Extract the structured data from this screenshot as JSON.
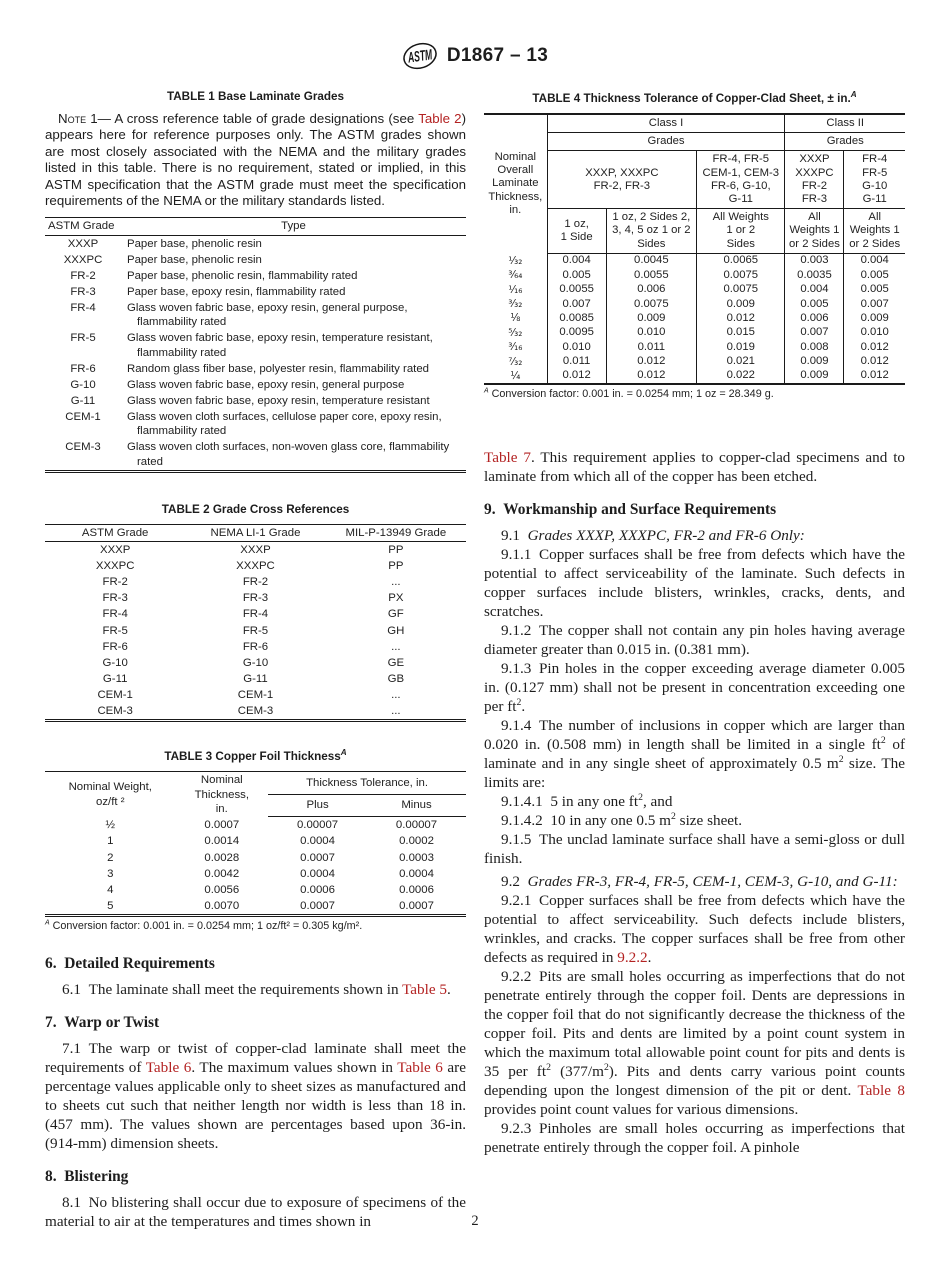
{
  "theme": {
    "link_color": "#b32222",
    "text_color": "#1d1d1d"
  },
  "header": {
    "doc_code": "D1867 – 13",
    "logo": "ASTM"
  },
  "footer": {
    "page_number": "2"
  },
  "table1": {
    "title": "TABLE 1 Base Laminate Grades",
    "note": [
      {
        "t": "Note",
        "s": "sc"
      },
      {
        "t": " 1— A cross reference table of grade designations (see "
      },
      {
        "t": "Table 2",
        "s": "link"
      },
      {
        "t": ") appears here for reference purposes only. The ASTM grades shown are most closely associated with the NEMA and the military grades listed in this table. There is no requirement, stated or implied, in this ASTM specification that the ASTM grade must meet the specification requirements of the NEMA or the military standards listed."
      }
    ],
    "columns": [
      "ASTM Grade",
      "Type"
    ],
    "rows": [
      [
        "XXXP",
        "Paper base, phenolic resin"
      ],
      [
        "XXXPC",
        "Paper base, phenolic resin"
      ],
      [
        "FR-2",
        "Paper base, phenolic resin, flammability rated"
      ],
      [
        "FR-3",
        "Paper base, epoxy resin, flammability rated"
      ],
      [
        "FR-4",
        "Glass woven fabric base, epoxy resin, general purpose, flammability rated"
      ],
      [
        "FR-5",
        "Glass woven fabric base, epoxy resin, temperature resistant, flammability rated"
      ],
      [
        "FR-6",
        "Random glass fiber base, polyester resin, flammability rated"
      ],
      [
        "G-10",
        "Glass woven fabric base, epoxy resin, general purpose"
      ],
      [
        "G-11",
        "Glass woven fabric base, epoxy resin, temperature resistant"
      ],
      [
        "CEM-1",
        "Glass woven cloth surfaces, cellulose paper core, epoxy resin, flammability rated"
      ],
      [
        "CEM-3",
        "Glass woven cloth surfaces, non-woven glass core, flammability rated"
      ]
    ]
  },
  "table2": {
    "title": "TABLE 2 Grade Cross References",
    "columns": [
      "ASTM Grade",
      "NEMA LI-1 Grade",
      "MIL-P-13949 Grade"
    ],
    "rows": [
      [
        "XXXP",
        "XXXP",
        "PP"
      ],
      [
        "XXXPC",
        "XXXPC",
        "PP"
      ],
      [
        "FR-2",
        "FR-2",
        "..."
      ],
      [
        "FR-3",
        "FR-3",
        "PX"
      ],
      [
        "FR-4",
        "FR-4",
        "GF"
      ],
      [
        "FR-5",
        "FR-5",
        "GH"
      ],
      [
        "FR-6",
        "FR-6",
        "..."
      ],
      [
        "G-10",
        "G-10",
        "GE"
      ],
      [
        "G-11",
        "G-11",
        "GB"
      ],
      [
        "CEM-1",
        "CEM-1",
        "..."
      ],
      [
        "CEM-3",
        "CEM-3",
        "..."
      ]
    ]
  },
  "table3": {
    "title": "TABLE 3 Copper Foil Thickness",
    "title_sup": "A",
    "col_weight": "Nominal Weight,\noz/ft ²",
    "col_thickness": "Nominal\nThickness,\nin.",
    "col_tolerance": "Thickness Tolerance, in.",
    "col_plus": "Plus",
    "col_minus": "Minus",
    "rows": [
      [
        "½",
        "0.0007",
        "0.00007",
        "0.00007"
      ],
      [
        "1",
        "0.0014",
        "0.0004",
        "0.0002"
      ],
      [
        "2",
        "0.0028",
        "0.0007",
        "0.0003"
      ],
      [
        "3",
        "0.0042",
        "0.0004",
        "0.0004"
      ],
      [
        "4",
        "0.0056",
        "0.0006",
        "0.0006"
      ],
      [
        "5",
        "0.0070",
        "0.0007",
        "0.0007"
      ]
    ],
    "footnote": [
      {
        "t": "A",
        "s": "supi"
      },
      {
        "t": " Conversion factor: 0.001 in. = 0.0254 mm; 1 oz/ft² = 0.305 kg/m²."
      }
    ]
  },
  "table4": {
    "title": "TABLE 4 Thickness Tolerance of Copper-Clad Sheet, ± in.",
    "title_sup": "A",
    "header": {
      "col_thickness": "Nominal\nOverall\nLaminate\nThickness,\nin.",
      "class1": "Class I",
      "class2": "Class II",
      "grades1": "Grades",
      "grades2": "Grades",
      "group1": "XXXP, XXXPC\nFR-2, FR-3",
      "group2": "FR-4, FR-5\nCEM-1, CEM-3\nFR-6, G-10,\nG-11",
      "group3": "XXXP\nXXXPC\nFR-2\nFR-3",
      "group4": "FR-4\nFR-5\nG-10\nG-11",
      "sub1": "1 oz,\n1 Side",
      "sub2": "1 oz, 2 Sides 2,\n3, 4, 5 oz 1 or 2\nSides",
      "sub3": "All Weights\n1 or 2\nSides",
      "sub4": "All\nWeights 1\nor 2 Sides",
      "sub5": "All\nWeights 1\nor 2 Sides"
    },
    "rows": [
      [
        "¹⁄₃₂",
        "0.004",
        "0.0045",
        "0.0065",
        "0.003",
        "0.004"
      ],
      [
        "³⁄₆₄",
        "0.005",
        "0.0055",
        "0.0075",
        "0.0035",
        "0.005"
      ],
      [
        "¹⁄₁₆",
        "0.0055",
        "0.006",
        "0.0075",
        "0.004",
        "0.005"
      ],
      [
        "³⁄₃₂",
        "0.007",
        "0.0075",
        "0.009",
        "0.005",
        "0.007"
      ],
      [
        "⅛",
        "0.0085",
        "0.009",
        "0.012",
        "0.006",
        "0.009"
      ],
      [
        "⁵⁄₃₂",
        "0.0095",
        "0.010",
        "0.015",
        "0.007",
        "0.010"
      ],
      [
        "³⁄₁₆",
        "0.010",
        "0.011",
        "0.019",
        "0.008",
        "0.012"
      ],
      [
        "⁷⁄₃₂",
        "0.011",
        "0.012",
        "0.021",
        "0.009",
        "0.012"
      ],
      [
        "¼",
        "0.012",
        "0.012",
        "0.022",
        "0.009",
        "0.012"
      ]
    ],
    "footnote": [
      {
        "t": "A",
        "s": "supi"
      },
      {
        "t": " Conversion factor: 0.001 in.  =  0.0254 mm; 1 oz  =  28.349 g."
      }
    ]
  },
  "sections": {
    "h6": "6. Detailed Requirements",
    "p61": [
      {
        "t": "6.1 The laminate shall meet the requirements shown in "
      },
      {
        "t": "Table 5",
        "s": "link"
      },
      {
        "t": "."
      }
    ],
    "h7": "7. Warp or Twist",
    "p71": [
      {
        "t": "7.1 The warp or twist of copper-clad laminate shall meet the requirements of "
      },
      {
        "t": "Table 6",
        "s": "link"
      },
      {
        "t": ". The maximum values shown in "
      },
      {
        "t": "Table 6",
        "s": "link"
      },
      {
        "t": " are percentage values applicable only to sheet sizes as manufactured and to sheets cut such that neither length nor width is less than 18 in. (457 mm). The values shown are percentages based upon 36-in. (914-mm) dimension sheets."
      }
    ],
    "h8": "8. Blistering",
    "p81": [
      {
        "t": "8.1 No blistering shall occur due to exposure of specimens of the material to air at the temperatures and times shown in"
      }
    ],
    "p_cont": [
      {
        "t": "Table 7",
        "s": "link"
      },
      {
        "t": ". This requirement applies to copper-clad specimens and to laminate from which all of the copper has been etched."
      }
    ],
    "h9": "9. Workmanship and Surface Requirements",
    "p91": [
      {
        "t": "9.1 "
      },
      {
        "t": "Grades XXXP, XXXPC, FR-2 and FR-6 Only:",
        "s": "i"
      }
    ],
    "p911": [
      {
        "t": "9.1.1 Copper surfaces shall be free from defects which have the potential to affect serviceability of the laminate. Such defects in copper surfaces include blisters, wrinkles, cracks, dents, and scratches."
      }
    ],
    "p912": [
      {
        "t": "9.1.2 The copper shall not contain any pin holes having average diameter greater than 0.015 in. (0.381 mm)."
      }
    ],
    "p913": [
      {
        "t": "9.1.3 Pin holes in the copper exceeding average diameter 0.005 in. (0.127 mm) shall not be present in concentration exceeding one per ft"
      },
      {
        "t": "2",
        "s": "sup"
      },
      {
        "t": "."
      }
    ],
    "p914": [
      {
        "t": "9.1.4 The number of inclusions in copper which are larger than 0.020 in. (0.508 mm) in length shall be limited in a single ft"
      },
      {
        "t": "2",
        "s": "sup"
      },
      {
        "t": " of laminate and in any single sheet of approximately 0.5 m"
      },
      {
        "t": "2",
        "s": "sup"
      },
      {
        "t": " size. The limits are:"
      }
    ],
    "p9141": [
      {
        "t": "9.1.4.1 5 in any one ft"
      },
      {
        "t": "2",
        "s": "sup"
      },
      {
        "t": ", and"
      }
    ],
    "p9142": [
      {
        "t": "9.1.4.2 10 in any one 0.5 m"
      },
      {
        "t": "2",
        "s": "sup"
      },
      {
        "t": " size sheet."
      }
    ],
    "p915": [
      {
        "t": "9.1.5 The unclad laminate surface shall have a semi-gloss or dull finish."
      }
    ],
    "p92": [
      {
        "t": "9.2 "
      },
      {
        "t": "Grades FR-3, FR-4, FR-5, CEM-1, CEM-3, G-10, and G-11:",
        "s": "i"
      }
    ],
    "p921": [
      {
        "t": "9.2.1 Copper surfaces shall be free from defects which have the potential to affect serviceability. Such defects include blisters, wrinkles, and cracks. The copper surfaces shall be free from other defects as required in "
      },
      {
        "t": "9.2.2",
        "s": "link"
      },
      {
        "t": "."
      }
    ],
    "p922": [
      {
        "t": "9.2.2 Pits are small holes occurring as imperfections that do not penetrate entirely through the copper foil. Dents are depressions in the copper foil that do not significantly decrease the thickness of the copper foil. Pits and dents are limited by a point count system in which the maximum total allowable point count for pits and dents is 35 per ft"
      },
      {
        "t": "2",
        "s": "sup"
      },
      {
        "t": " (377/m"
      },
      {
        "t": "2",
        "s": "sup"
      },
      {
        "t": "). Pits and dents carry various point counts depending upon the longest dimension of the pit or dent. "
      },
      {
        "t": "Table 8",
        "s": "link"
      },
      {
        "t": " provides point count values for various dimensions."
      }
    ],
    "p923": [
      {
        "t": "9.2.3 Pinholes are small holes occurring as imperfections that penetrate entirely through the copper foil. A pinhole"
      }
    ]
  }
}
